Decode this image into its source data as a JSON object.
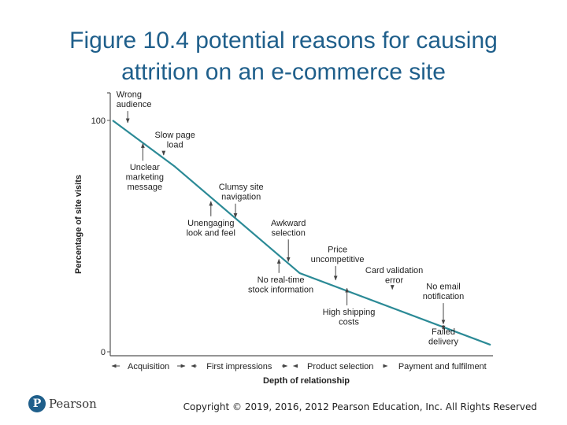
{
  "slide": {
    "title_line1": "Figure 10.4 potential reasons for causing",
    "title_line2": "attrition on an e-commerce site",
    "copyright": "Copyright © 2019, 2016, 2012 Pearson Education, Inc. All Rights Reserved",
    "logo_text": "Pearson",
    "logo_mark": "P"
  },
  "chart_data": {
    "type": "line",
    "title": "",
    "xlabel": "Depth of relationship",
    "ylabel": "Percentage of site visits",
    "ylim": [
      0,
      100
    ],
    "yticks": [
      0,
      100
    ],
    "xlim": [
      0,
      100
    ],
    "series": [
      {
        "name": "Site visits",
        "x": [
          0,
          16.5,
          49.5,
          100
        ],
        "values": [
          100,
          80,
          34,
          3
        ]
      }
    ],
    "stages": [
      {
        "label": "Acquisition",
        "from": -1,
        "to": 20
      },
      {
        "label": "First impressions",
        "from": 20,
        "to": 47
      },
      {
        "label": "Product selection",
        "from": 47,
        "to": 73.5
      },
      {
        "label": "Payment and fulfilment",
        "from": 73.5,
        "to": 101
      }
    ],
    "annotations": [
      {
        "lines": [
          "Wrong",
          "audience"
        ],
        "x": 4,
        "y": 98,
        "label_x": 1,
        "label_y": 110,
        "anchor": "start"
      },
      {
        "lines": [
          "Slow page",
          "load"
        ],
        "x": 13.5,
        "y": 84,
        "label_x": 16.5,
        "label_y": 92.5,
        "anchor": "middle"
      },
      {
        "lines": [
          "Unclear",
          "marketing",
          "message"
        ],
        "x": 8,
        "y": 91,
        "label_x": 8.5,
        "label_y": 78.5,
        "anchor": "middle"
      },
      {
        "lines": [
          "Clumsy site",
          "navigation"
        ],
        "x": 32.5,
        "y": 57,
        "label_x": 34,
        "label_y": 70,
        "anchor": "middle"
      },
      {
        "lines": [
          "Unengaging",
          "look and feel"
        ],
        "x": 26,
        "y": 66,
        "label_x": 26,
        "label_y": 54.5,
        "anchor": "middle"
      },
      {
        "lines": [
          "Awkward",
          "selection"
        ],
        "x": 46.5,
        "y": 38,
        "label_x": 46.5,
        "label_y": 54.5,
        "anchor": "middle"
      },
      {
        "lines": [
          "Price",
          "uncompetitive"
        ],
        "x": 59,
        "y": 30,
        "label_x": 59.5,
        "label_y": 43,
        "anchor": "middle"
      },
      {
        "lines": [
          "Card validation",
          "error"
        ],
        "x": 74,
        "y": 26,
        "label_x": 74.5,
        "label_y": 34,
        "anchor": "middle"
      },
      {
        "lines": [
          "No real-time",
          "stock information"
        ],
        "x": 44,
        "y": 41,
        "label_x": 44.5,
        "label_y": 30,
        "anchor": "middle"
      },
      {
        "lines": [
          "High shipping",
          "costs"
        ],
        "x": 62,
        "y": 28.5,
        "label_x": 62.5,
        "label_y": 16,
        "anchor": "middle"
      },
      {
        "lines": [
          "No email",
          "notification"
        ],
        "x": 87.5,
        "y": 11,
        "label_x": 87.5,
        "label_y": 27,
        "anchor": "middle"
      },
      {
        "lines": [
          "Failed",
          "delivery"
        ],
        "x": 87.5,
        "y": 10.5,
        "label_x": 87.5,
        "label_y": 7.5,
        "anchor": "middle"
      }
    ],
    "colors": {
      "line": "#2b8a96",
      "axis": "#555555",
      "text": "#222222",
      "arrow": "#444444"
    }
  }
}
